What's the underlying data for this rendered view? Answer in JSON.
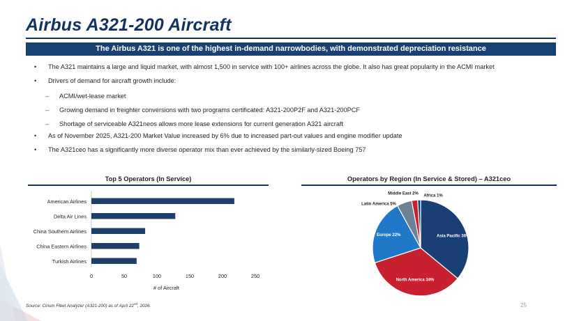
{
  "slide": {
    "title": "Airbus A321-200 Aircraft",
    "banner": "The Airbus A321 is one of the highest in-demand narrowbodies, with demonstrated depreciation resistance",
    "bullets": [
      {
        "marker": "•",
        "text": "The A321 maintains a large and liquid market, with almost 1,500 in service with 100+ airlines across the globe. It also has great popularity in the ACMI market"
      },
      {
        "marker": "•",
        "text": "Drivers of demand for aircraft growth include:"
      },
      {
        "marker": "–",
        "text": "ACMI/wet-lease market"
      },
      {
        "marker": "–",
        "text": "Growing demand in freighter conversions with two programs certificated: A321-200P2F and A321-200PCF"
      },
      {
        "marker": "–",
        "text": "Shortage of serviceable A321neos allows more lease extensions for current generation A321 aircraft"
      },
      {
        "marker": "•",
        "text": "As of November 2025, A321-200 Market Value increased by 6% due to increased part-out values and engine modifier update"
      },
      {
        "marker": "•",
        "text": "The A321ceo has a significantly more diverse operator mix than ever achieved by the similarly-sized Boeing 757"
      }
    ],
    "source_prefix": "Source: Cirium Fleet Analyzer (A321-200) as of April 22",
    "source_sup": "nd",
    "source_suffix": ", 2026.",
    "page_number": "25"
  },
  "colors": {
    "navy": "#13325f",
    "banner": "#1a4173",
    "bar": "#1f3f6b",
    "pie_asia_pacific": "#1a3f74",
    "pie_north_america": "#c8202e",
    "pie_europe": "#1f78c8",
    "pie_latin_america": "#6f8092",
    "pie_middle_east": "#c8202e",
    "pie_africa": "#1a3f74"
  },
  "chart_data": [
    {
      "type": "bar",
      "orientation": "horizontal",
      "title": "Top 5 Operators (In Service)",
      "categories": [
        "American Airlines",
        "Delta Air Lines",
        "China Southern Airlines",
        "China Eastern Airlines",
        "Turkish Airlines"
      ],
      "values": [
        218,
        128,
        82,
        73,
        69
      ],
      "xlabel": "# of Aircraft",
      "ylabel": "",
      "xlim": [
        0,
        250
      ],
      "xticks": [
        "0",
        "50",
        "100",
        "150",
        "200",
        "250"
      ],
      "grid": false
    },
    {
      "type": "pie",
      "title": "Operators by Region (In Service & Stored) – A321ceo",
      "slices": [
        {
          "label": "Asia Pacific 36%",
          "value": 36
        },
        {
          "label": "North America 34%",
          "value": 34
        },
        {
          "label": "Europe 22%",
          "value": 22
        },
        {
          "label": "Latin America 5%",
          "value": 5
        },
        {
          "label": "Middle East 2%",
          "value": 2
        },
        {
          "label": "Africa 1%",
          "value": 1
        }
      ]
    }
  ]
}
